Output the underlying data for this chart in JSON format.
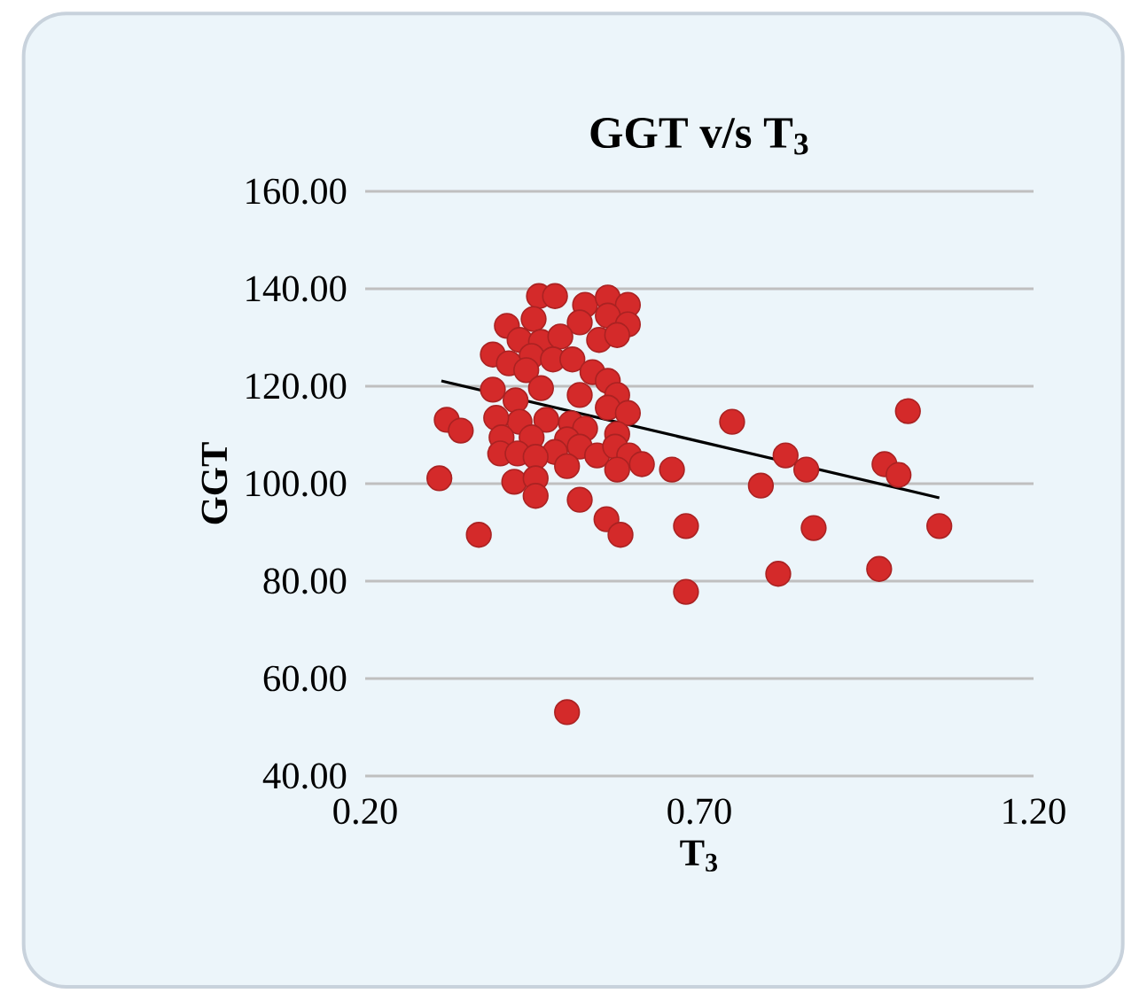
{
  "chart_data": {
    "type": "scatter",
    "title": "GGT v/s T$_{3}$",
    "xlabel": "T$_{3}$",
    "ylabel": "GGT",
    "xlim": [
      0.2,
      1.2
    ],
    "ylim": [
      40,
      160
    ],
    "xticks": [
      {
        "value": 0.2,
        "label": "0.20"
      },
      {
        "value": 0.7,
        "label": "0.70"
      },
      {
        "value": 1.2,
        "label": "1.20"
      }
    ],
    "yticks": [
      {
        "value": 40,
        "label": "40.00"
      },
      {
        "value": 60,
        "label": "60.00"
      },
      {
        "value": 80,
        "label": "80.00"
      },
      {
        "value": 100,
        "label": "100.00"
      },
      {
        "value": 120,
        "label": "120.00"
      },
      {
        "value": 140,
        "label": "140.00"
      },
      {
        "value": 160,
        "label": "160.00"
      }
    ],
    "grid": "y",
    "series": [
      {
        "color": "#d42a2a",
        "marker": "circle",
        "x": [
          0.46,
          0.484,
          0.529,
          0.563,
          0.593,
          0.412,
          0.452,
          0.521,
          0.563,
          0.593,
          0.55,
          0.577,
          0.431,
          0.463,
          0.492,
          0.391,
          0.449,
          0.481,
          0.51,
          0.415,
          0.441,
          0.54,
          0.563,
          0.463,
          0.391,
          0.521,
          0.577,
          0.425,
          0.563,
          0.593,
          0.322,
          0.343,
          0.431,
          0.471,
          0.508,
          0.396,
          0.529,
          0.404,
          0.449,
          0.577,
          0.502,
          0.521,
          0.402,
          0.428,
          0.484,
          0.455,
          0.547,
          0.574,
          0.595,
          0.614,
          0.502,
          0.577,
          0.659,
          0.311,
          0.423,
          0.455,
          0.455,
          0.521,
          0.561,
          0.582,
          0.37,
          0.68,
          0.502,
          0.68,
          0.749,
          0.829,
          0.86,
          0.792,
          0.977,
          0.998,
          1.012,
          1.059,
          0.871,
          0.818,
          0.969
        ],
        "values": [
          138.5,
          138.5,
          136.7,
          138.2,
          136.7,
          132.4,
          133.8,
          133.1,
          134.5,
          132.7,
          129.5,
          130.5,
          129.5,
          129.1,
          130.2,
          126.5,
          126.2,
          125.5,
          125.5,
          124.7,
          123.3,
          122.9,
          121.1,
          119.6,
          119.3,
          118.2,
          118.2,
          117.1,
          115.6,
          114.5,
          113.1,
          110.9,
          112.7,
          113.1,
          112.4,
          113.5,
          111.3,
          109.5,
          109.5,
          110.2,
          109.1,
          107.6,
          106.2,
          106.2,
          106.5,
          105.5,
          105.8,
          107.6,
          105.8,
          104.0,
          103.6,
          102.9,
          102.9,
          101.1,
          100.4,
          101.1,
          97.5,
          96.7,
          92.7,
          89.5,
          89.5,
          91.3,
          53.1,
          77.8,
          112.7,
          105.8,
          102.9,
          99.6,
          104.0,
          101.8,
          114.9,
          91.3,
          90.9,
          81.5,
          82.5
        ]
      },
      {
        "type": "line",
        "color": "#000000",
        "marker": "none",
        "x": [
          0.314,
          1.059
        ],
        "values": [
          121.1,
          97.1
        ]
      }
    ]
  }
}
